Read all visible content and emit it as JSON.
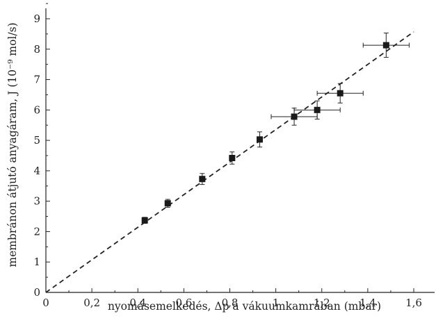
{
  "chart_data": {
    "type": "scatter",
    "xlabel": "nyomásemelkedés, Δp a vákuumkamrában (mbar)",
    "ylabel": "membránon átjutó anyagáram, J (10⁻⁹ mol/s)",
    "xlim": [
      0,
      1.7
    ],
    "ylim": [
      0,
      9.5
    ],
    "x_ticks": [
      0,
      0.2,
      0.4,
      0.6,
      0.8,
      1.0,
      1.2,
      1.4,
      1.6
    ],
    "x_tick_labels": [
      "0",
      "0,2",
      "0,4",
      "0,6",
      "0,8",
      "1",
      "1,2",
      "1,4",
      "1,6"
    ],
    "y_ticks": [
      0,
      1,
      2,
      3,
      4,
      5,
      6,
      7,
      8,
      9
    ],
    "y_tick_labels": [
      "0",
      "1",
      "2",
      "3",
      "4",
      "5",
      "6",
      "7",
      "8",
      "9"
    ],
    "grid": false,
    "series": [
      {
        "points": [
          {
            "x": 0.43,
            "y": 2.37,
            "xerr": 0.0,
            "yerr": 0.1
          },
          {
            "x": 0.53,
            "y": 2.93,
            "xerr": 0.0,
            "yerr": 0.13
          },
          {
            "x": 0.68,
            "y": 3.73,
            "xerr": 0.0,
            "yerr": 0.18
          },
          {
            "x": 0.81,
            "y": 4.42,
            "xerr": 0.0,
            "yerr": 0.2
          },
          {
            "x": 0.93,
            "y": 5.03,
            "xerr": 0.0,
            "yerr": 0.25
          },
          {
            "x": 1.08,
            "y": 5.78,
            "xerr": 0.1,
            "yerr": 0.28
          },
          {
            "x": 1.18,
            "y": 6.0,
            "xerr": 0.1,
            "yerr": 0.3
          },
          {
            "x": 1.28,
            "y": 6.55,
            "xerr": 0.1,
            "yerr": 0.32
          },
          {
            "x": 1.48,
            "y": 8.13,
            "xerr": 0.1,
            "yerr": 0.4
          }
        ]
      }
    ],
    "fit_line": {
      "style": "dashed",
      "x": [
        0,
        1.6
      ],
      "y": [
        0,
        8.57
      ]
    }
  }
}
